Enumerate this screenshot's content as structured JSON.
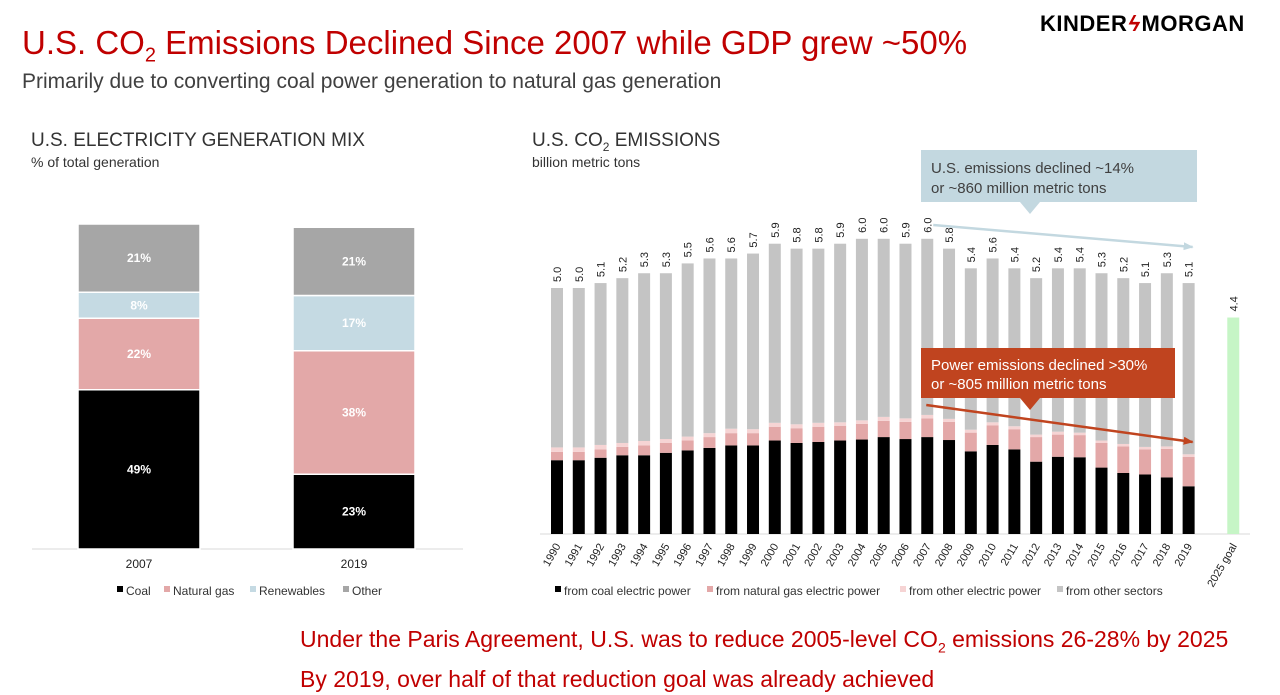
{
  "header": {
    "title_pre": "U.S. CO",
    "title_sub": "2",
    "title_post": " Emissions Declined Since 2007 while GDP grew ~50%",
    "subtitle": "Primarily due to converting coal power generation to natural gas generation",
    "logo_left": "KINDER",
    "logo_mark": "ϟ",
    "logo_right": "MORGAN"
  },
  "left_panel": {
    "title": "U.S. ELECTRICITY GENERATION MIX",
    "unit": "% of total generation"
  },
  "right_panel": {
    "title_pre": "U.S. CO",
    "title_sub": "2",
    "title_post": " EMISSIONS",
    "unit": "billion metric tons"
  },
  "callouts": {
    "total_line1": "U.S. emissions declined ~14%",
    "total_line2": "or ~860 million metric tons",
    "power_line1": "Power emissions declined >30%",
    "power_line2": "or ~805 million metric tons"
  },
  "footer": {
    "line1_pre": "Under the Paris Agreement, U.S. was to reduce 2005-level CO",
    "line1_sub": "2",
    "line1_post": " emissions 26-28% by 2025",
    "line2": "By 2019, over half of that reduction goal was already achieved"
  },
  "colors": {
    "title_red": "#c00000",
    "coal": "#000000",
    "natural_gas": "#e3a8a8",
    "renewables": "#c5dae3",
    "other": "#a6a6a6",
    "other_electric": "#f6d4d4",
    "other_sectors": "#c4c4c4",
    "goal": "#c6f5c6",
    "callout_blue": "#c3d8e0",
    "callout_red": "#c0441f"
  },
  "chart_data": [
    {
      "type": "bar",
      "stacked": true,
      "categories": [
        "2007",
        "2019"
      ],
      "series": [
        {
          "name": "Coal",
          "values": [
            49,
            23
          ],
          "labels": [
            "49%",
            "23%"
          ]
        },
        {
          "name": "Natural gas",
          "values": [
            22,
            38
          ],
          "labels": [
            "22%",
            "38%"
          ]
        },
        {
          "name": "Renewables",
          "values": [
            8,
            17
          ],
          "labels": [
            "8%",
            "17%"
          ]
        },
        {
          "name": "Other",
          "values": [
            21,
            21
          ],
          "labels": [
            "21%",
            "21%"
          ]
        }
      ],
      "ylim": [
        0,
        100
      ],
      "legend": "bottom"
    },
    {
      "type": "bar",
      "stacked": true,
      "categories": [
        "1990",
        "1991",
        "1992",
        "1993",
        "1994",
        "1995",
        "1996",
        "1997",
        "1998",
        "1999",
        "2000",
        "2001",
        "2002",
        "2003",
        "2004",
        "2005",
        "2006",
        "2007",
        "2008",
        "2009",
        "2010",
        "2011",
        "2012",
        "2013",
        "2014",
        "2015",
        "2016",
        "2017",
        "2018",
        "2019"
      ],
      "totals": [
        5.0,
        5.0,
        5.1,
        5.2,
        5.3,
        5.3,
        5.5,
        5.6,
        5.6,
        5.7,
        5.9,
        5.8,
        5.8,
        5.9,
        6.0,
        6.0,
        5.9,
        6.0,
        5.8,
        5.4,
        5.6,
        5.4,
        5.2,
        5.4,
        5.4,
        5.3,
        5.2,
        5.1,
        5.3,
        5.1
      ],
      "total_labels": [
        "5.0",
        "5.0",
        "5.1",
        "5.2",
        "5.3",
        "5.3",
        "5.5",
        "5.6",
        "5.6",
        "5.7",
        "5.9",
        "5.8",
        "5.8",
        "5.9",
        "6.0",
        "6.0",
        "5.9",
        "6.0",
        "5.8",
        "5.4",
        "5.6",
        "5.4",
        "5.2",
        "5.4",
        "5.4",
        "5.3",
        "5.2",
        "5.1",
        "5.3",
        "5.1"
      ],
      "series": [
        {
          "name": "from coal electric power",
          "values": [
            1.5,
            1.5,
            1.55,
            1.6,
            1.6,
            1.65,
            1.7,
            1.75,
            1.8,
            1.8,
            1.9,
            1.85,
            1.87,
            1.9,
            1.92,
            1.97,
            1.93,
            1.97,
            1.91,
            1.68,
            1.81,
            1.72,
            1.47,
            1.57,
            1.56,
            1.35,
            1.24,
            1.21,
            1.15,
            0.97
          ]
        },
        {
          "name": "from natural gas electric power",
          "values": [
            0.17,
            0.17,
            0.17,
            0.17,
            0.2,
            0.2,
            0.2,
            0.22,
            0.25,
            0.25,
            0.28,
            0.3,
            0.31,
            0.3,
            0.32,
            0.33,
            0.35,
            0.38,
            0.37,
            0.38,
            0.4,
            0.41,
            0.5,
            0.45,
            0.45,
            0.5,
            0.54,
            0.51,
            0.58,
            0.6
          ]
        },
        {
          "name": "from other electric power",
          "values": [
            0.09,
            0.09,
            0.09,
            0.08,
            0.09,
            0.08,
            0.08,
            0.08,
            0.09,
            0.08,
            0.08,
            0.08,
            0.08,
            0.07,
            0.07,
            0.08,
            0.07,
            0.07,
            0.06,
            0.06,
            0.06,
            0.06,
            0.05,
            0.06,
            0.05,
            0.05,
            0.05,
            0.05,
            0.05,
            0.05
          ]
        },
        {
          "name": "from other sectors",
          "values": [
            3.24,
            3.24,
            3.29,
            3.35,
            3.41,
            3.37,
            3.52,
            3.55,
            3.46,
            3.57,
            3.64,
            3.57,
            3.54,
            3.63,
            3.69,
            3.62,
            3.55,
            3.58,
            3.46,
            3.28,
            3.33,
            3.21,
            3.18,
            3.32,
            3.34,
            3.4,
            3.37,
            3.33,
            3.52,
            3.48
          ]
        }
      ],
      "goal": {
        "category": "2025 goal",
        "value": 4.4,
        "label": "4.4"
      },
      "legend": "bottom"
    }
  ]
}
